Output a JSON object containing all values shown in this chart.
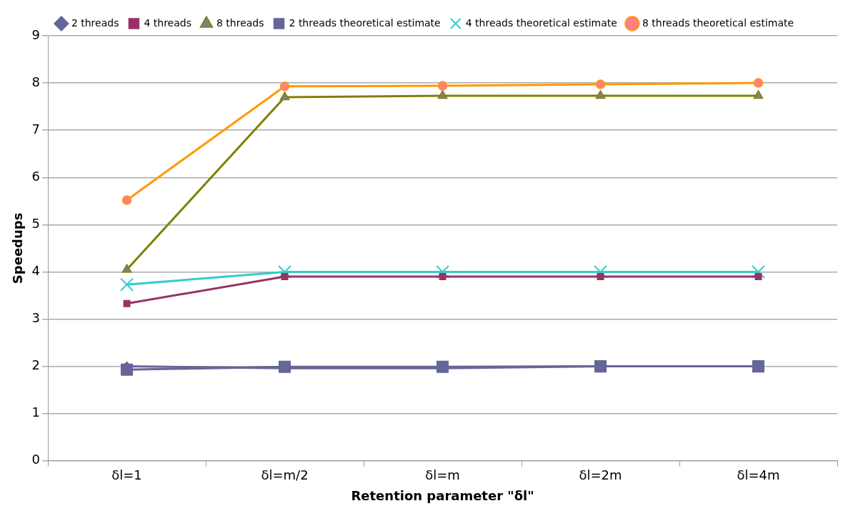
{
  "chart_data": {
    "type": "line",
    "xlabel": "Retention parameter \"δl\"",
    "ylabel": "Speedups",
    "categories": [
      "δl=1",
      "δl=m/2",
      "δl=m",
      "δl=2m",
      "δl=4m"
    ],
    "series": [
      {
        "name": "2 threads",
        "color": "#666699",
        "marker": "diamond",
        "values": [
          2.0,
          1.96,
          1.96,
          2.0,
          2.0
        ]
      },
      {
        "name": "4 threads",
        "color": "#993366",
        "marker": "square",
        "values": [
          3.33,
          3.9,
          3.9,
          3.9,
          3.9
        ]
      },
      {
        "name": "8 threads",
        "color": "#808000",
        "marker": "triangle",
        "values": [
          4.05,
          7.7,
          7.73,
          7.73,
          7.73
        ]
      },
      {
        "name": "2 threads theoretical estimate",
        "color": "#666699",
        "marker": "square",
        "values": [
          1.93,
          1.99,
          1.99,
          2.0,
          2.0
        ]
      },
      {
        "name": "4 threads theoretical estimate",
        "color": "#33cccc",
        "marker": "cross",
        "values": [
          3.73,
          4.0,
          4.0,
          4.0,
          4.0
        ]
      },
      {
        "name": "8 threads theoretical estimate",
        "color": "#ff9900",
        "marker": "circle",
        "values": [
          5.52,
          7.93,
          7.94,
          7.97,
          8.0
        ]
      }
    ],
    "ylim": [
      0,
      9
    ],
    "yticks": [
      0,
      1,
      2,
      3,
      4,
      5,
      6,
      7,
      8,
      9
    ],
    "grid": "y",
    "legend": "top",
    "line_style": "solid"
  }
}
